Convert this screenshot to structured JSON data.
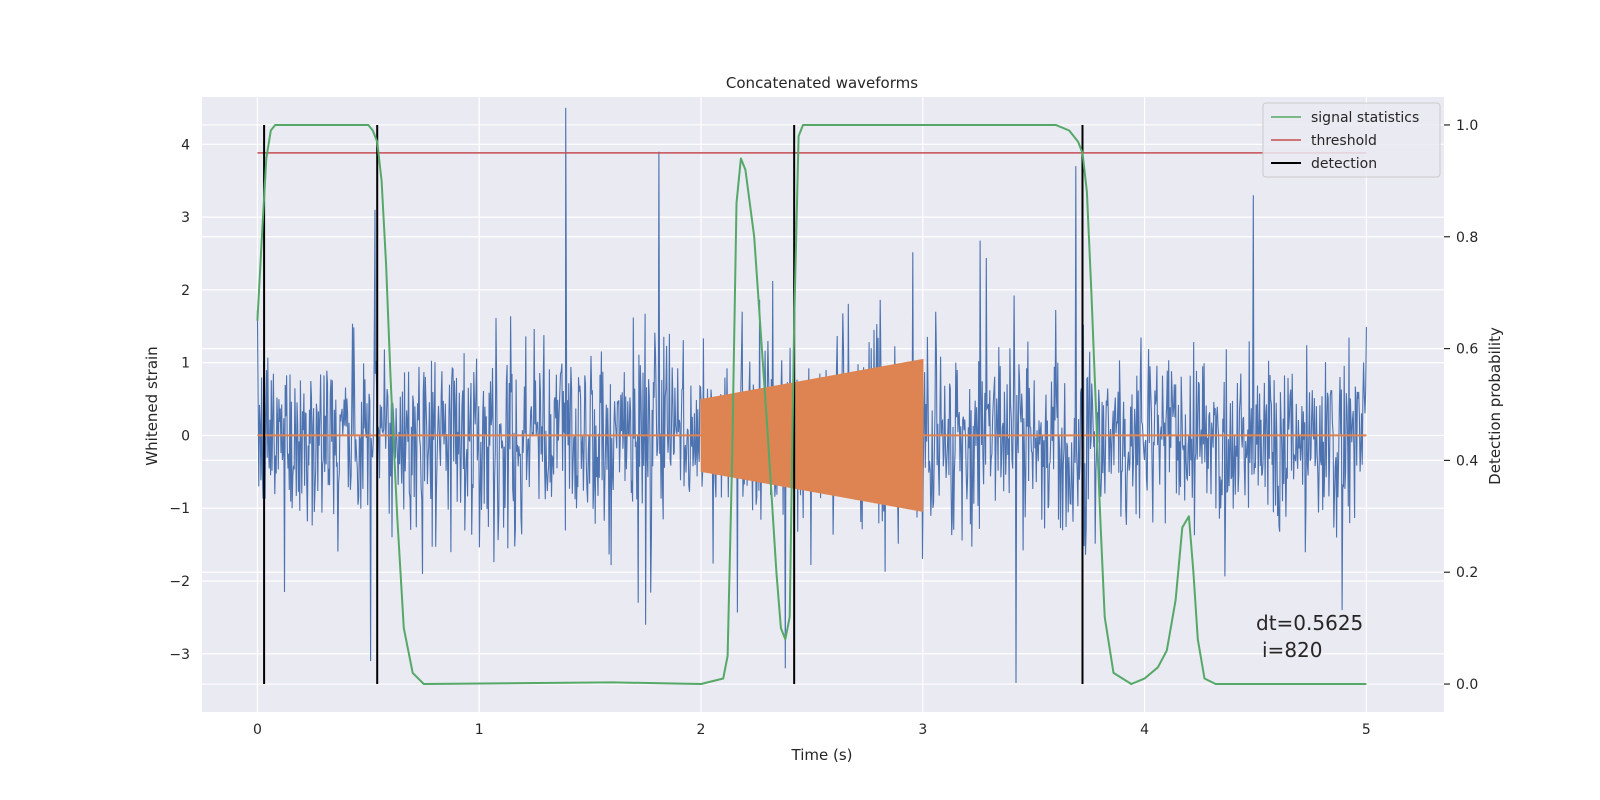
{
  "chart_data": {
    "type": "line",
    "title": "Concatenated waveforms",
    "xlabel": "Time (s)",
    "ylabel": "Whitened strain",
    "y2label": "Detection probability",
    "xlim": [
      -0.25,
      5.35
    ],
    "ylim": [
      -3.8,
      4.65
    ],
    "y2lim": [
      -0.05,
      1.05
    ],
    "xticks": [
      0,
      1,
      2,
      3,
      4,
      5
    ],
    "xtick_labels": [
      "0",
      "1",
      "2",
      "3",
      "4",
      "5"
    ],
    "yticks": [
      -3,
      -2,
      -1,
      0,
      1,
      2,
      3,
      4
    ],
    "ytick_labels": [
      "−3",
      "−2",
      "−1",
      "0",
      "1",
      "2",
      "3",
      "4"
    ],
    "y2ticks": [
      0.0,
      0.2,
      0.4,
      0.6,
      0.8,
      1.0
    ],
    "y2tick_labels": [
      "0.0",
      "0.2",
      "0.4",
      "0.6",
      "0.8",
      "1.0"
    ],
    "grid": true,
    "legend_position": "top-right",
    "colors": {
      "noise": "#4c72b0",
      "injection": "#dd8452",
      "signal_statistics": "#55a868",
      "threshold": "#c44e52",
      "detection": "#000000",
      "background": "#eaeaf2",
      "grid": "#ffffff"
    },
    "legend": [
      {
        "label": "signal statistics",
        "color": "#55a868"
      },
      {
        "label": "threshold",
        "color": "#c44e52"
      },
      {
        "label": "detection",
        "color": "#000000"
      }
    ],
    "series": [
      {
        "name": "signal statistics",
        "axis": "right",
        "x": [
          0.0,
          0.02,
          0.04,
          0.06,
          0.08,
          0.1,
          0.5,
          0.52,
          0.54,
          0.56,
          0.58,
          0.6,
          0.63,
          0.66,
          0.7,
          0.75,
          1.6,
          2.0,
          2.1,
          2.12,
          2.14,
          2.16,
          2.18,
          2.2,
          2.24,
          2.3,
          2.34,
          2.36,
          2.38,
          2.4,
          2.42,
          2.44,
          2.46,
          2.5,
          3.5,
          3.6,
          3.66,
          3.7,
          3.72,
          3.74,
          3.76,
          3.78,
          3.8,
          3.82,
          3.86,
          3.94,
          4.0,
          4.06,
          4.1,
          4.14,
          4.17,
          4.2,
          4.22,
          4.24,
          4.27,
          4.32,
          5.0
        ],
        "y": [
          0.65,
          0.8,
          0.94,
          0.99,
          1.0,
          1.0,
          1.0,
          0.99,
          0.97,
          0.9,
          0.75,
          0.55,
          0.3,
          0.1,
          0.02,
          0.0,
          0.003,
          0.0,
          0.01,
          0.05,
          0.4,
          0.86,
          0.94,
          0.92,
          0.8,
          0.45,
          0.2,
          0.1,
          0.08,
          0.12,
          0.65,
          0.98,
          1.0,
          1.0,
          1.0,
          1.0,
          0.99,
          0.97,
          0.95,
          0.88,
          0.7,
          0.5,
          0.3,
          0.12,
          0.02,
          0.0,
          0.01,
          0.03,
          0.06,
          0.15,
          0.28,
          0.3,
          0.2,
          0.08,
          0.01,
          0.0,
          0.0
        ]
      },
      {
        "name": "threshold",
        "axis": "right",
        "x": [
          0.0,
          5.0
        ],
        "y": [
          0.95,
          0.95
        ]
      },
      {
        "name": "detection",
        "axis": "right",
        "x": [
          0.03,
          0.54,
          2.42,
          3.72
        ],
        "y_range": [
          0.0,
          1.0
        ]
      }
    ],
    "noise": {
      "x_range": [
        0.0,
        5.0
      ],
      "typical_range": [
        -1.9,
        2.0
      ],
      "peaks": [
        {
          "x": 1.39,
          "y": 4.5
        },
        {
          "x": 0.53,
          "y": 3.1
        },
        {
          "x": 3.69,
          "y": 3.7
        },
        {
          "x": 1.81,
          "y": 3.9
        },
        {
          "x": 1.75,
          "y": -2.6
        },
        {
          "x": 3.42,
          "y": -3.4
        },
        {
          "x": 0.51,
          "y": -3.1
        },
        {
          "x": 2.38,
          "y": -3.2
        },
        {
          "x": 4.49,
          "y": 3.3
        }
      ]
    },
    "injection": {
      "x_range": [
        2.0,
        3.0
      ],
      "amp_start": 0.5,
      "amp_end": 1.05,
      "baseline": 0.0
    },
    "annotations": [
      "dt=0.5625",
      "i=820"
    ]
  }
}
